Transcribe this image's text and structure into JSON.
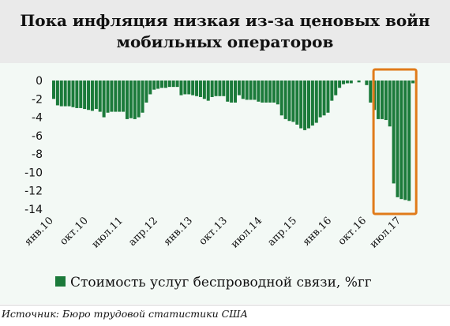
{
  "chart_data": {
    "type": "bar",
    "title": "Пока инфляция низкая из-за ценовых войн мобильных операторов",
    "xlabel": "",
    "ylabel": "",
    "ylim": [
      -14,
      0
    ],
    "yticks": [
      0,
      -2,
      -4,
      -6,
      -8,
      -10,
      -12,
      -14
    ],
    "grid": false,
    "legend_position": "bottom",
    "series_color": "#1b7a3a",
    "highlight_color": "#e07b1a",
    "x_tick_labels": [
      "янв.10",
      "окт.10",
      "июл.11",
      "апр.12",
      "янв.13",
      "окт.13",
      "июл.14",
      "апр.15",
      "янв.16",
      "окт.16",
      "июл.17"
    ],
    "x_tick_index": [
      0,
      9,
      18,
      27,
      36,
      45,
      54,
      63,
      72,
      81,
      90
    ],
    "highlight_range": [
      84,
      93
    ],
    "series": [
      {
        "name": "Стоимость услуг беспроводной связи, %гг",
        "values": [
          -2.0,
          -2.7,
          -2.8,
          -2.8,
          -2.8,
          -2.9,
          -3.0,
          -3.0,
          -3.1,
          -3.2,
          -3.3,
          -3.1,
          -3.4,
          -4.0,
          -3.5,
          -3.4,
          -3.4,
          -3.4,
          -3.4,
          -4.2,
          -4.1,
          -4.2,
          -4.0,
          -3.5,
          -2.4,
          -1.5,
          -1.0,
          -0.9,
          -0.8,
          -0.8,
          -0.7,
          -0.7,
          -0.7,
          -1.6,
          -1.5,
          -1.5,
          -1.6,
          -1.7,
          -1.8,
          -2.0,
          -2.2,
          -1.8,
          -1.7,
          -1.7,
          -1.7,
          -2.3,
          -2.4,
          -2.4,
          -1.6,
          -2.0,
          -2.1,
          -2.1,
          -2.1,
          -2.3,
          -2.4,
          -2.4,
          -2.4,
          -2.4,
          -2.6,
          -3.8,
          -4.2,
          -4.4,
          -4.5,
          -4.8,
          -5.2,
          -5.4,
          -5.2,
          -4.9,
          -4.6,
          -4.0,
          -3.8,
          -3.5,
          -2.2,
          -1.6,
          -0.8,
          -0.4,
          -0.3,
          -0.3,
          0.0,
          -0.2,
          0.0,
          -0.5,
          -2.4,
          -3.2,
          -4.2,
          -4.2,
          -4.3,
          -5.0,
          -11.2,
          -12.7,
          -12.9,
          -13.0,
          -13.1,
          -0.3
        ]
      }
    ]
  },
  "source": "Источник: Бюро трудовой статистики США"
}
